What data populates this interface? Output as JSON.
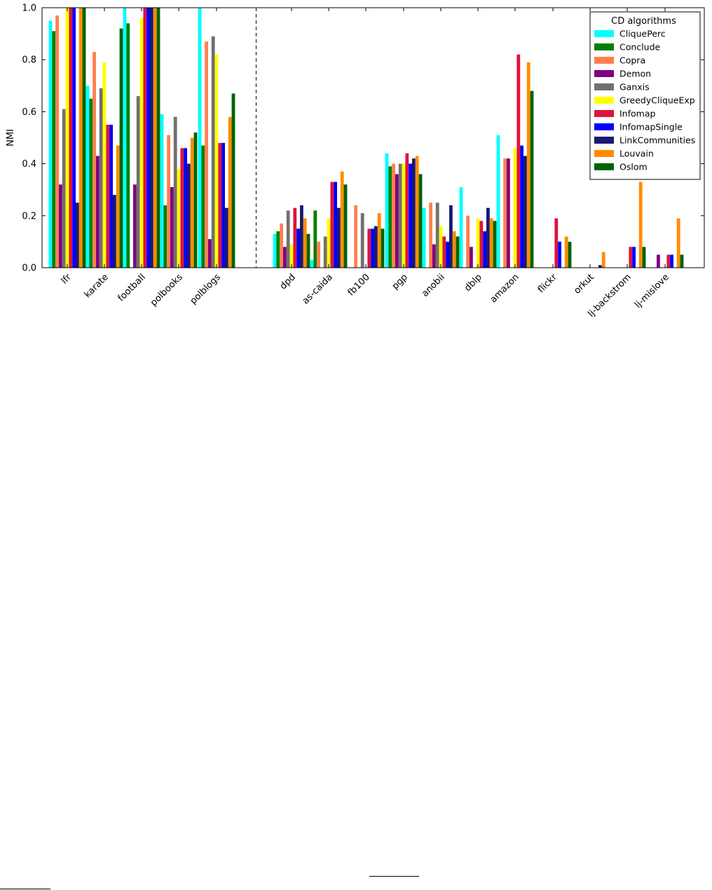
{
  "chart_data": {
    "type": "bar",
    "ylabel": "NMI",
    "xlabel": "",
    "title": "",
    "ylim": [
      0,
      1.0
    ],
    "yticks": [
      "0.0",
      "0.2",
      "0.4",
      "0.6",
      "0.8",
      "1.0"
    ],
    "grid": false,
    "legend": {
      "title": "CD algorithms",
      "placement": "top-right"
    },
    "categories": [
      "lfr",
      "karate",
      "football",
      "polbooks",
      "polblogs",
      "dpd",
      "as-caida",
      "fb100",
      "pgp",
      "anobii",
      "dblp",
      "amazon",
      "flickr",
      "orkut",
      "lj-backstrom",
      "lj-mislove"
    ],
    "series": [
      {
        "name": "CliquePerc",
        "color": "#00ffff",
        "values": [
          0.95,
          0.7,
          1.0,
          0.59,
          1.0,
          0.13,
          0.03,
          0,
          0.44,
          0.23,
          0.31,
          0.51,
          0,
          0,
          0,
          0
        ]
      },
      {
        "name": "Conclude",
        "color": "#008000",
        "values": [
          0.91,
          0.65,
          0.94,
          0.24,
          0.47,
          0.14,
          0.22,
          0,
          0.39,
          0,
          0,
          0,
          0,
          0,
          0,
          0
        ]
      },
      {
        "name": "Copra",
        "color": "#ff7f50",
        "values": [
          0.97,
          0.83,
          0,
          0.51,
          0.87,
          0.17,
          0.1,
          0.24,
          0.4,
          0.25,
          0.2,
          0.42,
          0,
          0,
          0,
          0
        ]
      },
      {
        "name": "Demon",
        "color": "#800080",
        "values": [
          0.32,
          0.43,
          0.32,
          0.31,
          0.11,
          0.08,
          0,
          0,
          0.36,
          0.09,
          0.08,
          0.42,
          0,
          0,
          0,
          0.05
        ]
      },
      {
        "name": "Ganxis",
        "color": "#707070",
        "values": [
          0.61,
          0.69,
          0.66,
          0.58,
          0.89,
          0.22,
          0.12,
          0.21,
          0.4,
          0.25,
          0,
          0,
          0,
          0,
          0,
          0
        ]
      },
      {
        "name": "GreedyCliqueExp",
        "color": "#ffff00",
        "values": [
          1.0,
          0.79,
          0.96,
          0.38,
          0.82,
          0.09,
          0.19,
          0,
          0.4,
          0.16,
          0.19,
          0.46,
          0,
          0,
          0,
          0
        ]
      },
      {
        "name": "Infomap",
        "color": "#dc143c",
        "values": [
          1.0,
          0.55,
          1.0,
          0.46,
          0.48,
          0.23,
          0.33,
          0.15,
          0.44,
          0.12,
          0.18,
          0.82,
          0.19,
          0,
          0.08,
          0.05
        ]
      },
      {
        "name": "InfomapSingle",
        "color": "#0000ff",
        "values": [
          1.0,
          0.55,
          1.0,
          0.46,
          0.48,
          0.15,
          0.33,
          0.15,
          0.4,
          0.1,
          0.14,
          0.47,
          0.1,
          0,
          0.08,
          0.05
        ]
      },
      {
        "name": "LinkCommunities",
        "color": "#191970",
        "values": [
          0.25,
          0.28,
          1.0,
          0.4,
          0.23,
          0.24,
          0.23,
          0.16,
          0.42,
          0.24,
          0.23,
          0.43,
          0,
          0.01,
          0,
          0
        ]
      },
      {
        "name": "Louvain",
        "color": "#ff8c00",
        "values": [
          1.0,
          0.47,
          1.0,
          0.5,
          0.58,
          0.19,
          0.37,
          0.21,
          0.43,
          0.14,
          0.19,
          0.79,
          0.12,
          0.06,
          0.33,
          0.19
        ]
      },
      {
        "name": "Oslom",
        "color": "#006400",
        "values": [
          1.0,
          0.92,
          1.0,
          0.52,
          0.67,
          0.13,
          0.32,
          0.15,
          0.36,
          0.12,
          0.18,
          0.68,
          0.1,
          0,
          0.08,
          0.05
        ]
      }
    ]
  }
}
